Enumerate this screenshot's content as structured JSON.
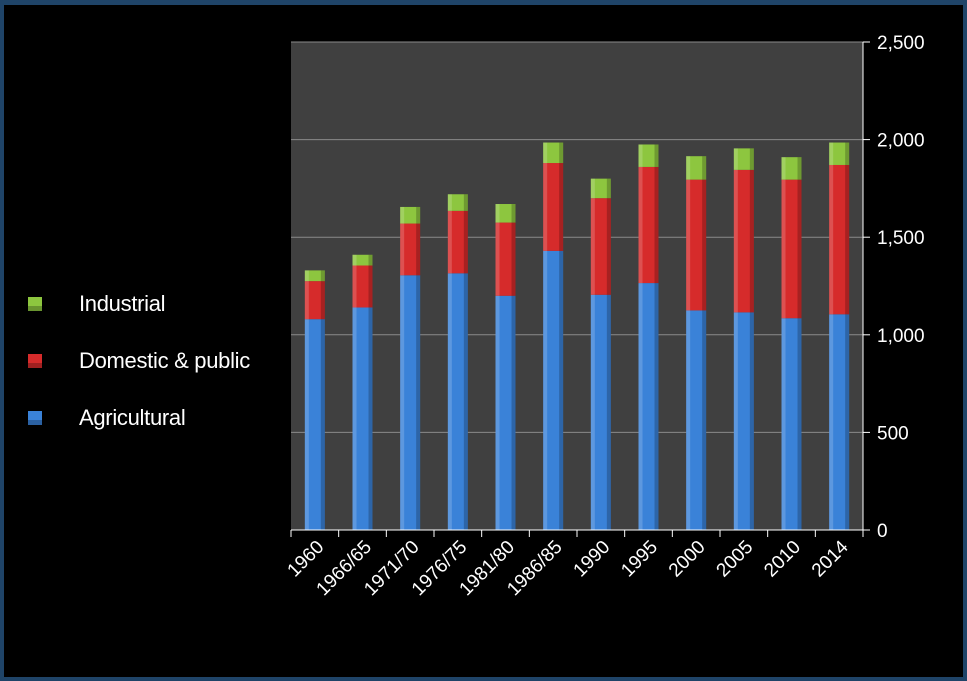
{
  "legend": {
    "items": [
      {
        "label": "Industrial",
        "color": "#8dc63f"
      },
      {
        "label": "Domestic & public",
        "color": "#d62b2b"
      },
      {
        "label": "Agricultural",
        "color": "#3a82d8"
      }
    ]
  },
  "chart_data": {
    "type": "bar",
    "stacked": true,
    "title": "",
    "xlabel": "",
    "ylabel": "",
    "ylim": [
      0,
      2500
    ],
    "yticks": [
      0,
      500,
      1000,
      1500,
      2000,
      2500
    ],
    "ytick_labels": [
      "0",
      "500",
      "1,000",
      "1,500",
      "2,000",
      "2,500"
    ],
    "y_axis_position": "right",
    "grid": true,
    "legend_position": "left",
    "plot_background": "#404040",
    "categories": [
      "1960",
      "1966/65",
      "1971/70",
      "1976/75",
      "1981/80",
      "1986/85",
      "1990",
      "1995",
      "2000",
      "2005",
      "2010",
      "2014"
    ],
    "series": [
      {
        "name": "Agricultural",
        "color": "#3a82d8",
        "values": [
          1080,
          1140,
          1305,
          1315,
          1200,
          1430,
          1205,
          1265,
          1125,
          1115,
          1085,
          1105
        ]
      },
      {
        "name": "Domestic & public",
        "color": "#d62b2b",
        "values": [
          195,
          215,
          265,
          320,
          375,
          450,
          495,
          595,
          670,
          730,
          710,
          765
        ]
      },
      {
        "name": "Industrial",
        "color": "#8dc63f",
        "values": [
          55,
          55,
          85,
          85,
          95,
          105,
          100,
          115,
          120,
          110,
          115,
          115
        ]
      }
    ]
  }
}
